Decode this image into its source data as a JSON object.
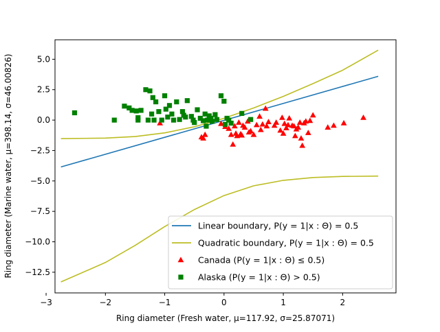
{
  "chart_data": {
    "type": "scatter",
    "xlabel": "Ring diameter (Fresh water, μ=117.92, σ=25.87071)",
    "ylabel": "Ring diameter (Marine water, μ=398.14, σ=46.00826)",
    "xlim": [
      -2.85,
      2.9
    ],
    "ylim": [
      -14.2,
      6.6
    ],
    "xticks": [
      -3,
      -2,
      -1,
      0,
      1,
      2
    ],
    "xtick_labels": [
      "−3",
      "−2",
      "−1",
      "0",
      "1",
      "2"
    ],
    "yticks": [
      5.0,
      2.5,
      0.0,
      -2.5,
      -5.0,
      -7.5,
      -10.0,
      -12.5
    ],
    "ytick_labels": [
      "5.0",
      "2.5",
      "0.0",
      "−2.5",
      "−5.0",
      "−7.5",
      "−10.0",
      "−12.5"
    ],
    "grid": false,
    "legend_position": "lower-right",
    "colors": {
      "linear": "#1f77b4",
      "quadratic": "#bcbd22",
      "canada": "#ff0000",
      "alaska": "#008000"
    },
    "legend": [
      {
        "key": "linear",
        "label": "Linear boundary, P(y = 1|x : Θ) = 0.5",
        "marker": "line"
      },
      {
        "key": "quadratic",
        "label": "Quadratic boundary, P(y = 1|x : Θ) = 0.5",
        "marker": "line"
      },
      {
        "key": "canada",
        "label": "Canada (P(y = 1|x : Θ) ≤ 0.5)",
        "marker": "triangle"
      },
      {
        "key": "alaska",
        "label": "Alaska (P(y = 1|x : Θ) > 0.5)",
        "marker": "square"
      }
    ],
    "series": [
      {
        "name": "Linear boundary",
        "kind": "line",
        "color_key": "linear",
        "x": [
          -2.75,
          2.6
        ],
        "y": [
          -3.85,
          3.6
        ]
      },
      {
        "name": "Quadratic boundary (upper)",
        "kind": "line",
        "color_key": "quadratic",
        "x": [
          -2.75,
          -2.0,
          -1.5,
          -1.0,
          -0.5,
          0.0,
          0.5,
          1.0,
          1.5,
          2.0,
          2.6
        ],
        "y": [
          -1.52,
          -1.48,
          -1.35,
          -1.05,
          -0.55,
          0.15,
          1.0,
          1.95,
          3.0,
          4.1,
          5.75
        ]
      },
      {
        "name": "Quadratic boundary (lower)",
        "kind": "line",
        "color_key": "quadratic",
        "x": [
          -2.75,
          -2.0,
          -1.5,
          -1.0,
          -0.5,
          0.0,
          0.5,
          1.0,
          1.5,
          2.0,
          2.6
        ],
        "y": [
          -13.3,
          -11.7,
          -10.3,
          -8.75,
          -7.35,
          -6.2,
          -5.4,
          -4.95,
          -4.72,
          -4.63,
          -4.6
        ]
      },
      {
        "name": "Canada",
        "kind": "scatter",
        "marker": "triangle",
        "color_key": "canada",
        "x": [
          -1.08,
          -0.38,
          -0.35,
          -0.32,
          -0.05,
          0.02,
          0.08,
          0.12,
          0.15,
          0.18,
          0.2,
          0.22,
          0.25,
          0.28,
          0.3,
          0.35,
          0.4,
          0.42,
          0.5,
          0.55,
          0.6,
          0.65,
          0.7,
          0.72,
          0.85,
          0.88,
          0.95,
          1.0,
          1.02,
          1.05,
          1.1,
          1.15,
          1.18,
          1.2,
          1.25,
          1.28,
          1.3,
          1.32,
          1.35,
          1.38,
          1.42,
          1.45,
          1.5,
          1.75,
          1.85,
          2.02,
          2.35,
          0.62,
          0.75,
          0.98,
          1.08,
          1.22,
          0.32,
          0.45
        ],
        "y": [
          -0.25,
          -1.4,
          -1.5,
          -1.2,
          -0.3,
          -0.55,
          -0.7,
          -1.2,
          -2.0,
          -0.5,
          -1.1,
          -1.3,
          -0.2,
          -1.15,
          -1.25,
          -0.6,
          -0.1,
          -1.0,
          -1.2,
          -0.4,
          0.3,
          -0.35,
          0.95,
          -0.5,
          -0.45,
          -0.2,
          -0.85,
          -1.1,
          -0.3,
          -0.65,
          0.15,
          -0.45,
          -0.5,
          -1.3,
          -0.6,
          -0.2,
          -1.5,
          -2.1,
          -0.25,
          -0.1,
          -1.05,
          -0.05,
          0.4,
          -0.6,
          -0.45,
          -0.25,
          0.2,
          -0.8,
          -0.15,
          0.2,
          -0.4,
          -0.75,
          -0.45,
          -0.9
        ]
      },
      {
        "name": "Alaska",
        "kind": "scatter",
        "marker": "square",
        "color_key": "alaska",
        "x": [
          -2.52,
          -1.85,
          -1.68,
          -1.6,
          -1.55,
          -1.48,
          -1.45,
          -1.4,
          -1.32,
          -1.28,
          -1.25,
          -1.22,
          -1.2,
          -1.15,
          -1.1,
          -1.05,
          -1.0,
          -0.98,
          -0.95,
          -0.92,
          -0.88,
          -0.85,
          -0.8,
          -0.75,
          -0.7,
          -0.65,
          -0.62,
          -0.55,
          -0.52,
          -0.5,
          -0.45,
          -0.4,
          -0.35,
          -0.32,
          -0.3,
          -0.28,
          -0.25,
          -0.2,
          -0.15,
          -0.12,
          -0.05,
          0.0,
          0.02,
          0.05,
          0.08,
          0.12,
          0.3,
          -1.45,
          -1.18,
          -0.68,
          -0.22,
          0.45
        ],
        "y": [
          0.6,
          0.0,
          1.15,
          1.0,
          0.8,
          0.75,
          0.0,
          0.8,
          2.5,
          0.0,
          2.4,
          0.5,
          1.85,
          1.5,
          0.7,
          0.0,
          2.0,
          0.9,
          0.25,
          1.2,
          0.5,
          0.0,
          1.5,
          0.05,
          0.7,
          0.25,
          1.6,
          0.3,
          0.0,
          -0.2,
          0.85,
          0.15,
          -0.05,
          0.5,
          -0.5,
          0.0,
          0.35,
          -0.1,
          0.45,
          0.05,
          2.0,
          1.55,
          -0.35,
          0.15,
          0.0,
          -0.25,
          0.55,
          0.2,
          0.0,
          0.4,
          0.15,
          0.05
        ]
      }
    ]
  }
}
